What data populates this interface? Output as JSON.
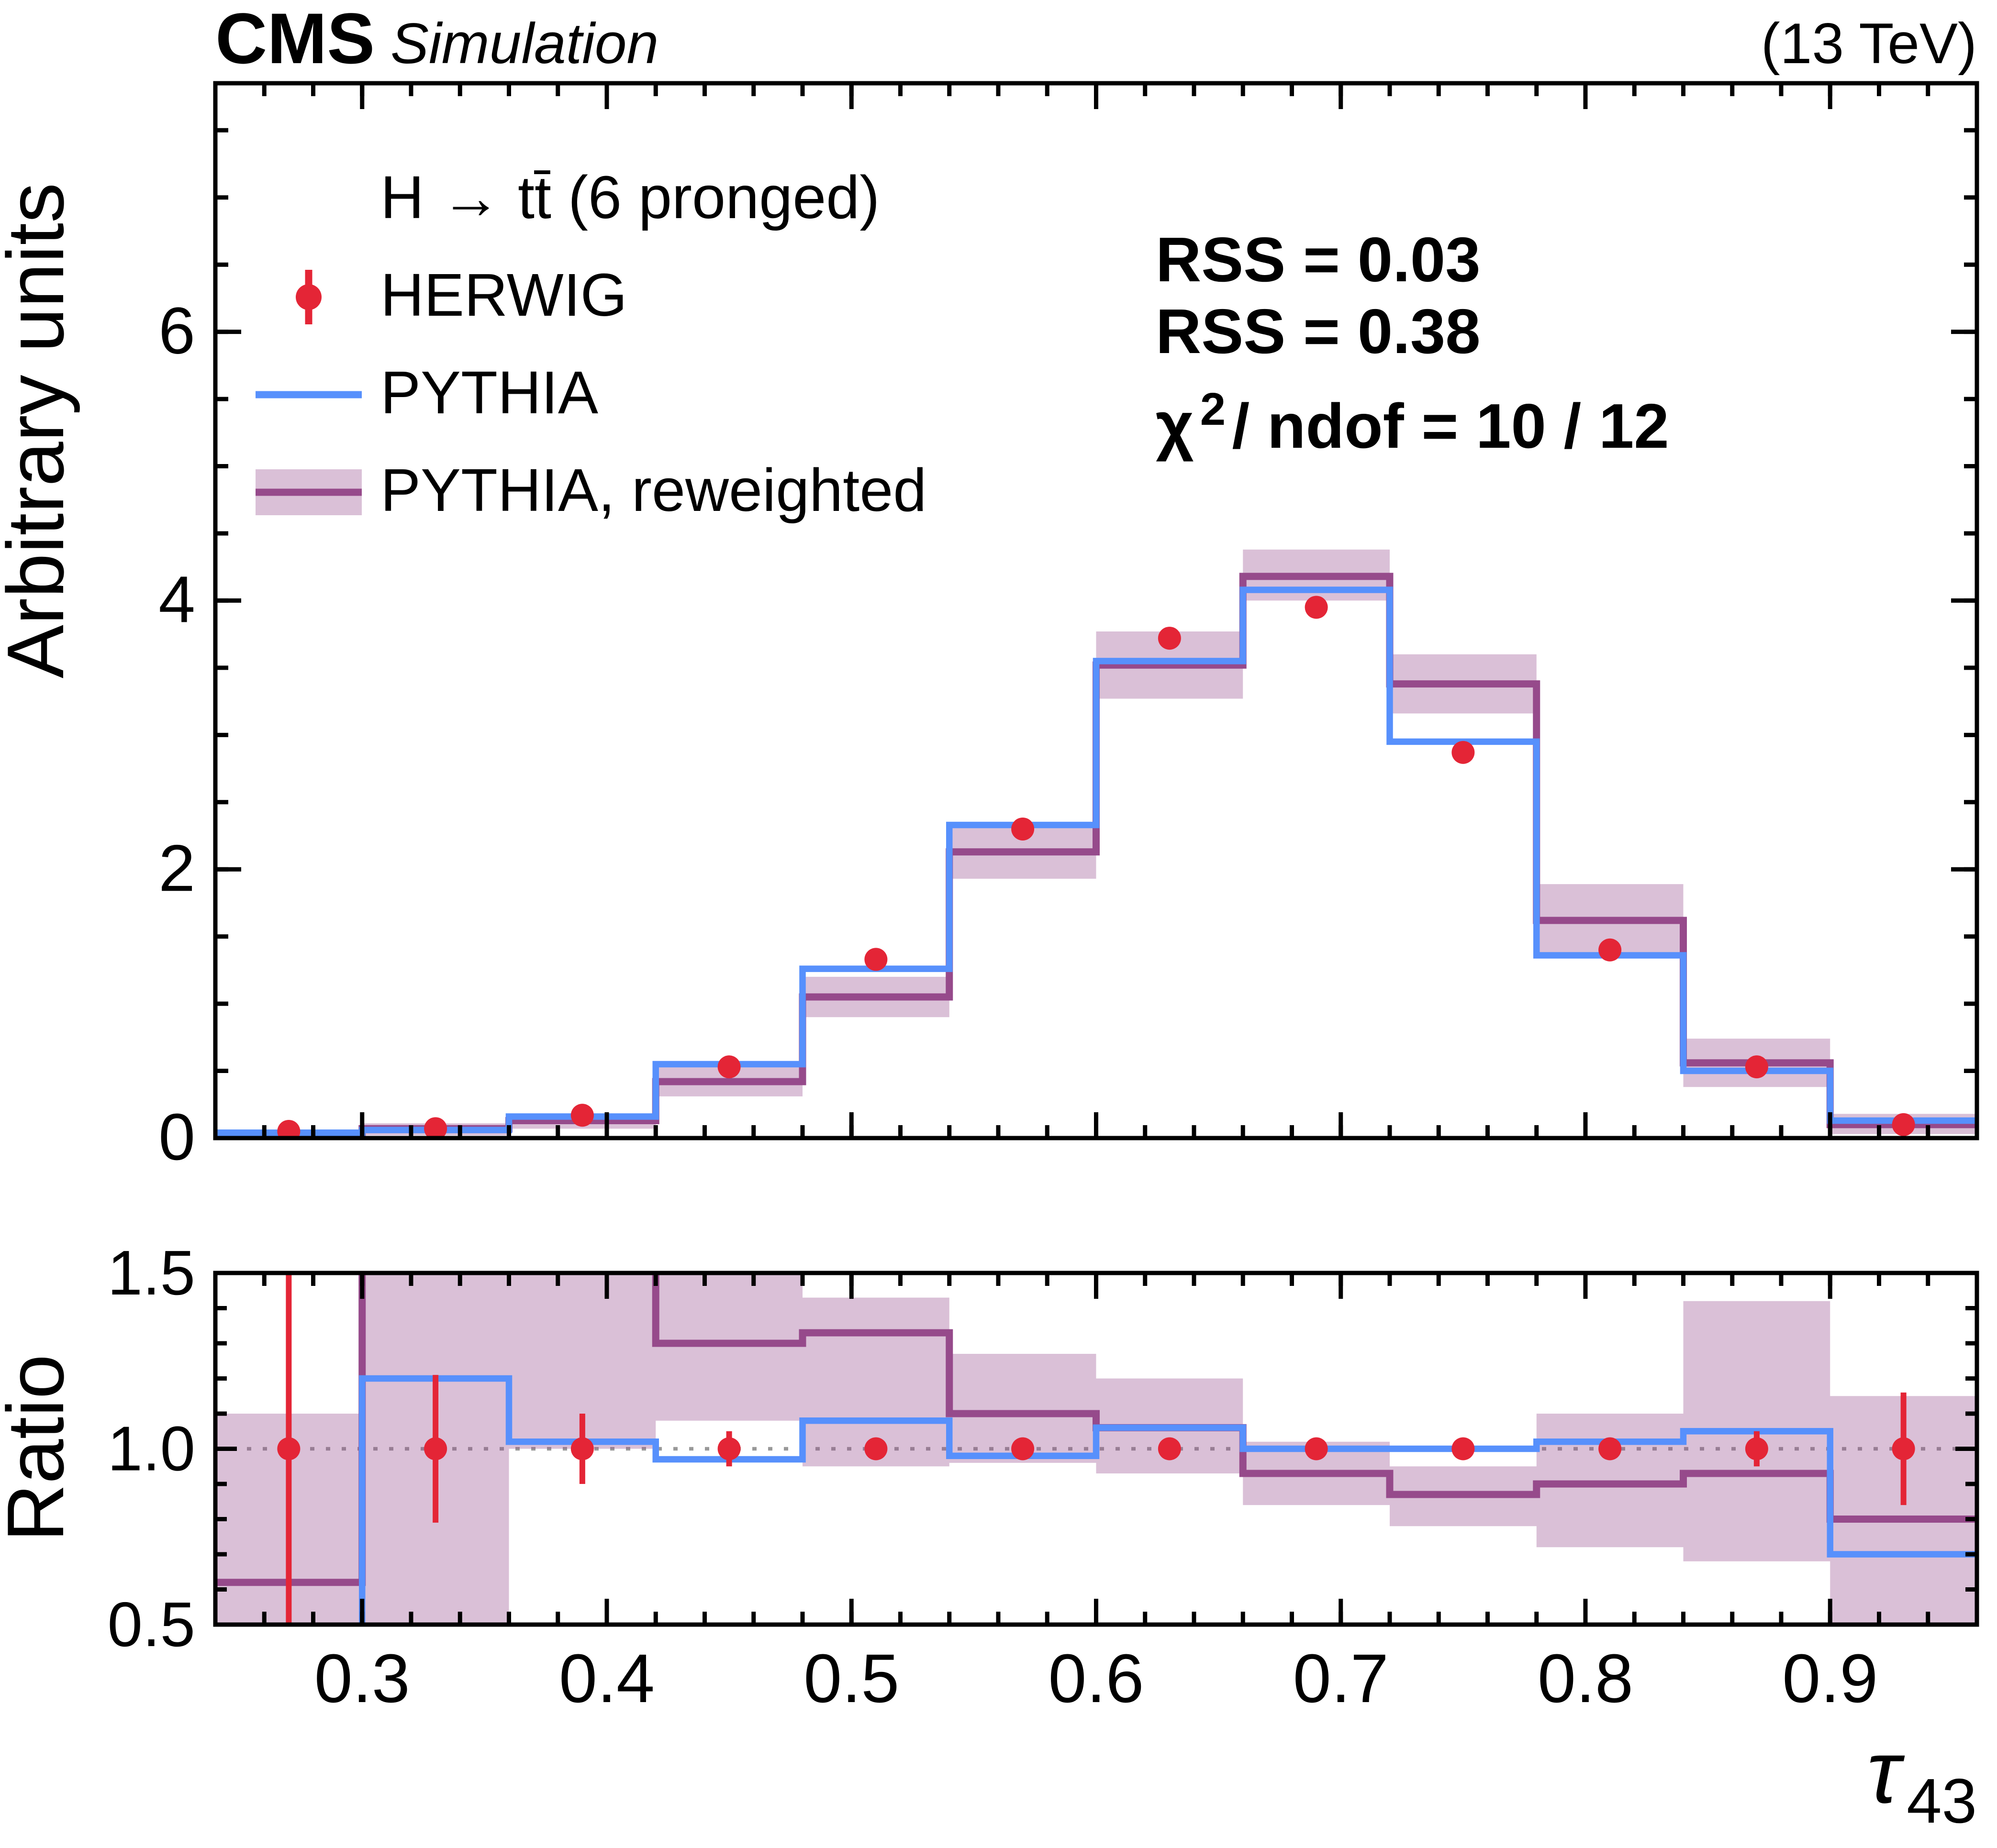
{
  "header": {
    "experiment": "CMS",
    "label": "Simulation",
    "energy": "(13 TeV)"
  },
  "legend": {
    "process": "H → tt̄ (6 pronged)",
    "entries": [
      {
        "label": "HERWIG",
        "marker": "point-with-error-bar",
        "color": "#e42536"
      },
      {
        "label": "PYTHIA",
        "marker": "line",
        "color": "#5790fc"
      },
      {
        "label": "PYTHIA, reweighted",
        "marker": "band-with-line",
        "color": "#964a8b"
      }
    ]
  },
  "annotations": {
    "rss_pythia": {
      "text": "RSS = 0.03",
      "color": "#5790fc"
    },
    "rss_reweighted": {
      "text": "RSS = 0.38",
      "color": "#964a8b"
    },
    "chi2": {
      "chi": "χ",
      "sup": "2",
      "rest": " / ndof = 10 / 12",
      "color": "#964a8b"
    }
  },
  "axes": {
    "main_ylabel": "Arbitrary units",
    "ratio_ylabel": "Ratio",
    "xlabel": {
      "symbol": "τ",
      "subscript": "43"
    },
    "main_yticks": [
      {
        "v": 0,
        "label": "0"
      },
      {
        "v": 2,
        "label": "2"
      },
      {
        "v": 4,
        "label": "4"
      },
      {
        "v": 6,
        "label": "6"
      }
    ],
    "ratio_yticks": [
      {
        "v": 0.5,
        "label": "0.5"
      },
      {
        "v": 1.0,
        "label": "1.0"
      },
      {
        "v": 1.5,
        "label": "1.5"
      }
    ],
    "xticks": [
      {
        "v": 0.3,
        "label": "0.3"
      },
      {
        "v": 0.4,
        "label": "0.4"
      },
      {
        "v": 0.5,
        "label": "0.5"
      },
      {
        "v": 0.6,
        "label": "0.6"
      },
      {
        "v": 0.7,
        "label": "0.7"
      },
      {
        "v": 0.8,
        "label": "0.8"
      },
      {
        "v": 0.9,
        "label": "0.9"
      }
    ]
  },
  "chart_data": {
    "type": "histogram-with-points-and-ratio-panel",
    "title": "CMS Simulation, H to ttbar (6 pronged), tau_43 distribution",
    "xlim": [
      0.24,
      0.96
    ],
    "main_ylim": [
      0,
      7.85
    ],
    "ratio_ylim": [
      0.5,
      1.5
    ],
    "bin_edges": [
      0.24,
      0.3,
      0.36,
      0.42,
      0.48,
      0.54,
      0.6,
      0.66,
      0.72,
      0.78,
      0.84,
      0.9,
      0.96
    ],
    "series": [
      {
        "name": "HERWIG",
        "type": "points",
        "color": "#e42536",
        "values": [
          0.05,
          0.07,
          0.17,
          0.53,
          1.33,
          2.3,
          3.72,
          3.95,
          2.87,
          1.4,
          0.53,
          0.1
        ],
        "errors": [
          0.03,
          0.03,
          0.04,
          0.05,
          0.06,
          0.07,
          0.08,
          0.08,
          0.07,
          0.06,
          0.05,
          0.03
        ]
      },
      {
        "name": "PYTHIA",
        "type": "step",
        "color": "#5790fc",
        "values": [
          0.04,
          0.06,
          0.16,
          0.55,
          1.26,
          2.33,
          3.55,
          4.08,
          2.95,
          1.36,
          0.5,
          0.13
        ]
      },
      {
        "name": "PYTHIA, reweighted",
        "type": "step-with-band",
        "color": "#964a8b",
        "values": [
          0.02,
          0.07,
          0.13,
          0.42,
          1.05,
          2.13,
          3.52,
          4.18,
          3.38,
          1.62,
          0.56,
          0.1
        ],
        "band_low": [
          0.0,
          0.02,
          0.07,
          0.31,
          0.9,
          1.93,
          3.27,
          4.0,
          3.16,
          1.35,
          0.38,
          0.03
        ],
        "band_high": [
          0.05,
          0.11,
          0.18,
          0.53,
          1.2,
          2.33,
          3.77,
          4.38,
          3.6,
          1.89,
          0.74,
          0.18
        ]
      }
    ],
    "ratio": {
      "definition": "HERWIG / model",
      "herwig_values": [
        1,
        1,
        1,
        1,
        1,
        1,
        1,
        1,
        1,
        1,
        1,
        1
      ],
      "herwig_errors": [
        0.55,
        0.21,
        0.1,
        0.05,
        0.03,
        0.02,
        0.02,
        0.02,
        0.02,
        0.03,
        0.05,
        0.16
      ],
      "pythia_values": [
        0.45,
        1.2,
        1.02,
        0.97,
        1.08,
        0.98,
        1.06,
        1.0,
        1.0,
        1.02,
        1.05,
        0.7
      ],
      "reweighted_values": [
        0.62,
        1.6,
        1.6,
        1.3,
        1.33,
        1.1,
        1.06,
        0.93,
        0.87,
        0.9,
        0.93,
        0.8
      ],
      "band_low": [
        0.5,
        0.45,
        1.0,
        1.08,
        0.95,
        0.96,
        0.93,
        0.84,
        0.78,
        0.72,
        0.68,
        0.45
      ],
      "band_high": [
        1.1,
        1.6,
        1.6,
        1.6,
        1.43,
        1.27,
        1.2,
        1.02,
        0.95,
        1.1,
        1.42,
        1.15
      ]
    }
  }
}
